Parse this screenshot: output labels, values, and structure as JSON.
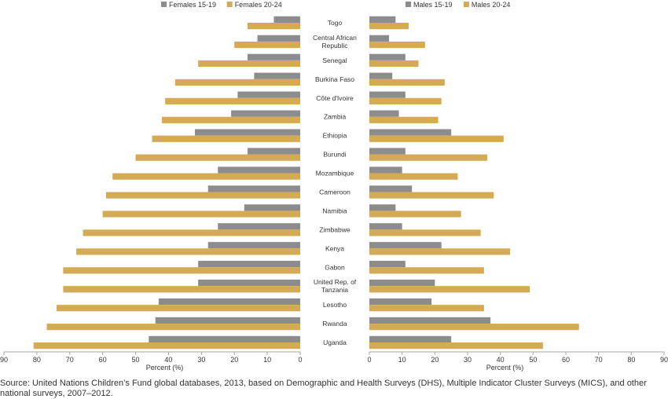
{
  "chart_data": {
    "type": "bar",
    "orientation": "horizontal",
    "categories": [
      "Togo",
      "Central African Republic",
      "Senegal",
      "Burkina Faso",
      "Côte d'Ivoire",
      "Zambia",
      "Ethiopia",
      "Burundi",
      "Mozambique",
      "Cameroon",
      "Namibia",
      "Zimbabwe",
      "Kenya",
      "Gabon",
      "United Rep. of Tanzania",
      "Lesotho",
      "Rwanda",
      "Uganda"
    ],
    "category_lines": [
      [
        "Togo"
      ],
      [
        "Central African",
        "Republic"
      ],
      [
        "Senegal"
      ],
      [
        "Burkina Faso"
      ],
      [
        "Côte d'Ivoire"
      ],
      [
        "Zambia"
      ],
      [
        "Ethiopia"
      ],
      [
        "Burundi"
      ],
      [
        "Mozambique"
      ],
      [
        "Cameroon"
      ],
      [
        "Namibia"
      ],
      [
        "Zimbabwe"
      ],
      [
        "Kenya"
      ],
      [
        "Gabon"
      ],
      [
        "United Rep. of",
        "Tanzania"
      ],
      [
        "Lesotho"
      ],
      [
        "Rwanda"
      ],
      [
        "Uganda"
      ]
    ],
    "panels": [
      {
        "id": "females",
        "direction": "reversed",
        "xlabel": "Percent (%)",
        "xlim": [
          0,
          90
        ],
        "ticks": [
          90,
          80,
          70,
          60,
          50,
          40,
          30,
          20,
          10,
          0
        ],
        "series": [
          {
            "name": "Females 15-19",
            "color": "#8c8c8c",
            "values": [
              8,
              13,
              16,
              14,
              19,
              21,
              32,
              16,
              25,
              28,
              17,
              25,
              28,
              31,
              31,
              43,
              44,
              46
            ]
          },
          {
            "name": "Females 20-24",
            "color": "#d4aa57",
            "values": [
              16,
              20,
              31,
              38,
              41,
              42,
              45,
              50,
              57,
              59,
              60,
              66,
              68,
              72,
              72,
              74,
              77,
              81
            ]
          }
        ]
      },
      {
        "id": "males",
        "direction": "normal",
        "xlabel": "Percent (%)",
        "xlim": [
          0,
          90
        ],
        "ticks": [
          0,
          10,
          20,
          30,
          40,
          50,
          60,
          70,
          80,
          90
        ],
        "series": [
          {
            "name": "Males 15-19",
            "color": "#8c8c8c",
            "values": [
              8,
              6,
              11,
              7,
              11,
              9,
              25,
              11,
              10,
              13,
              8,
              10,
              22,
              11,
              20,
              19,
              37,
              25
            ]
          },
          {
            "name": "Males 20-24",
            "color": "#d4aa57",
            "values": [
              12,
              17,
              15,
              23,
              22,
              21,
              41,
              36,
              27,
              38,
              28,
              34,
              43,
              35,
              49,
              35,
              64,
              53
            ]
          }
        ]
      }
    ],
    "grid": false,
    "legend_position": "top"
  },
  "footnote": "Source: United Nations Children’s Fund global databases, 2013, based on Demographic and Health Surveys (DHS), Multiple Indicator Cluster Surveys (MICS), and other national surveys, 2007–2012."
}
